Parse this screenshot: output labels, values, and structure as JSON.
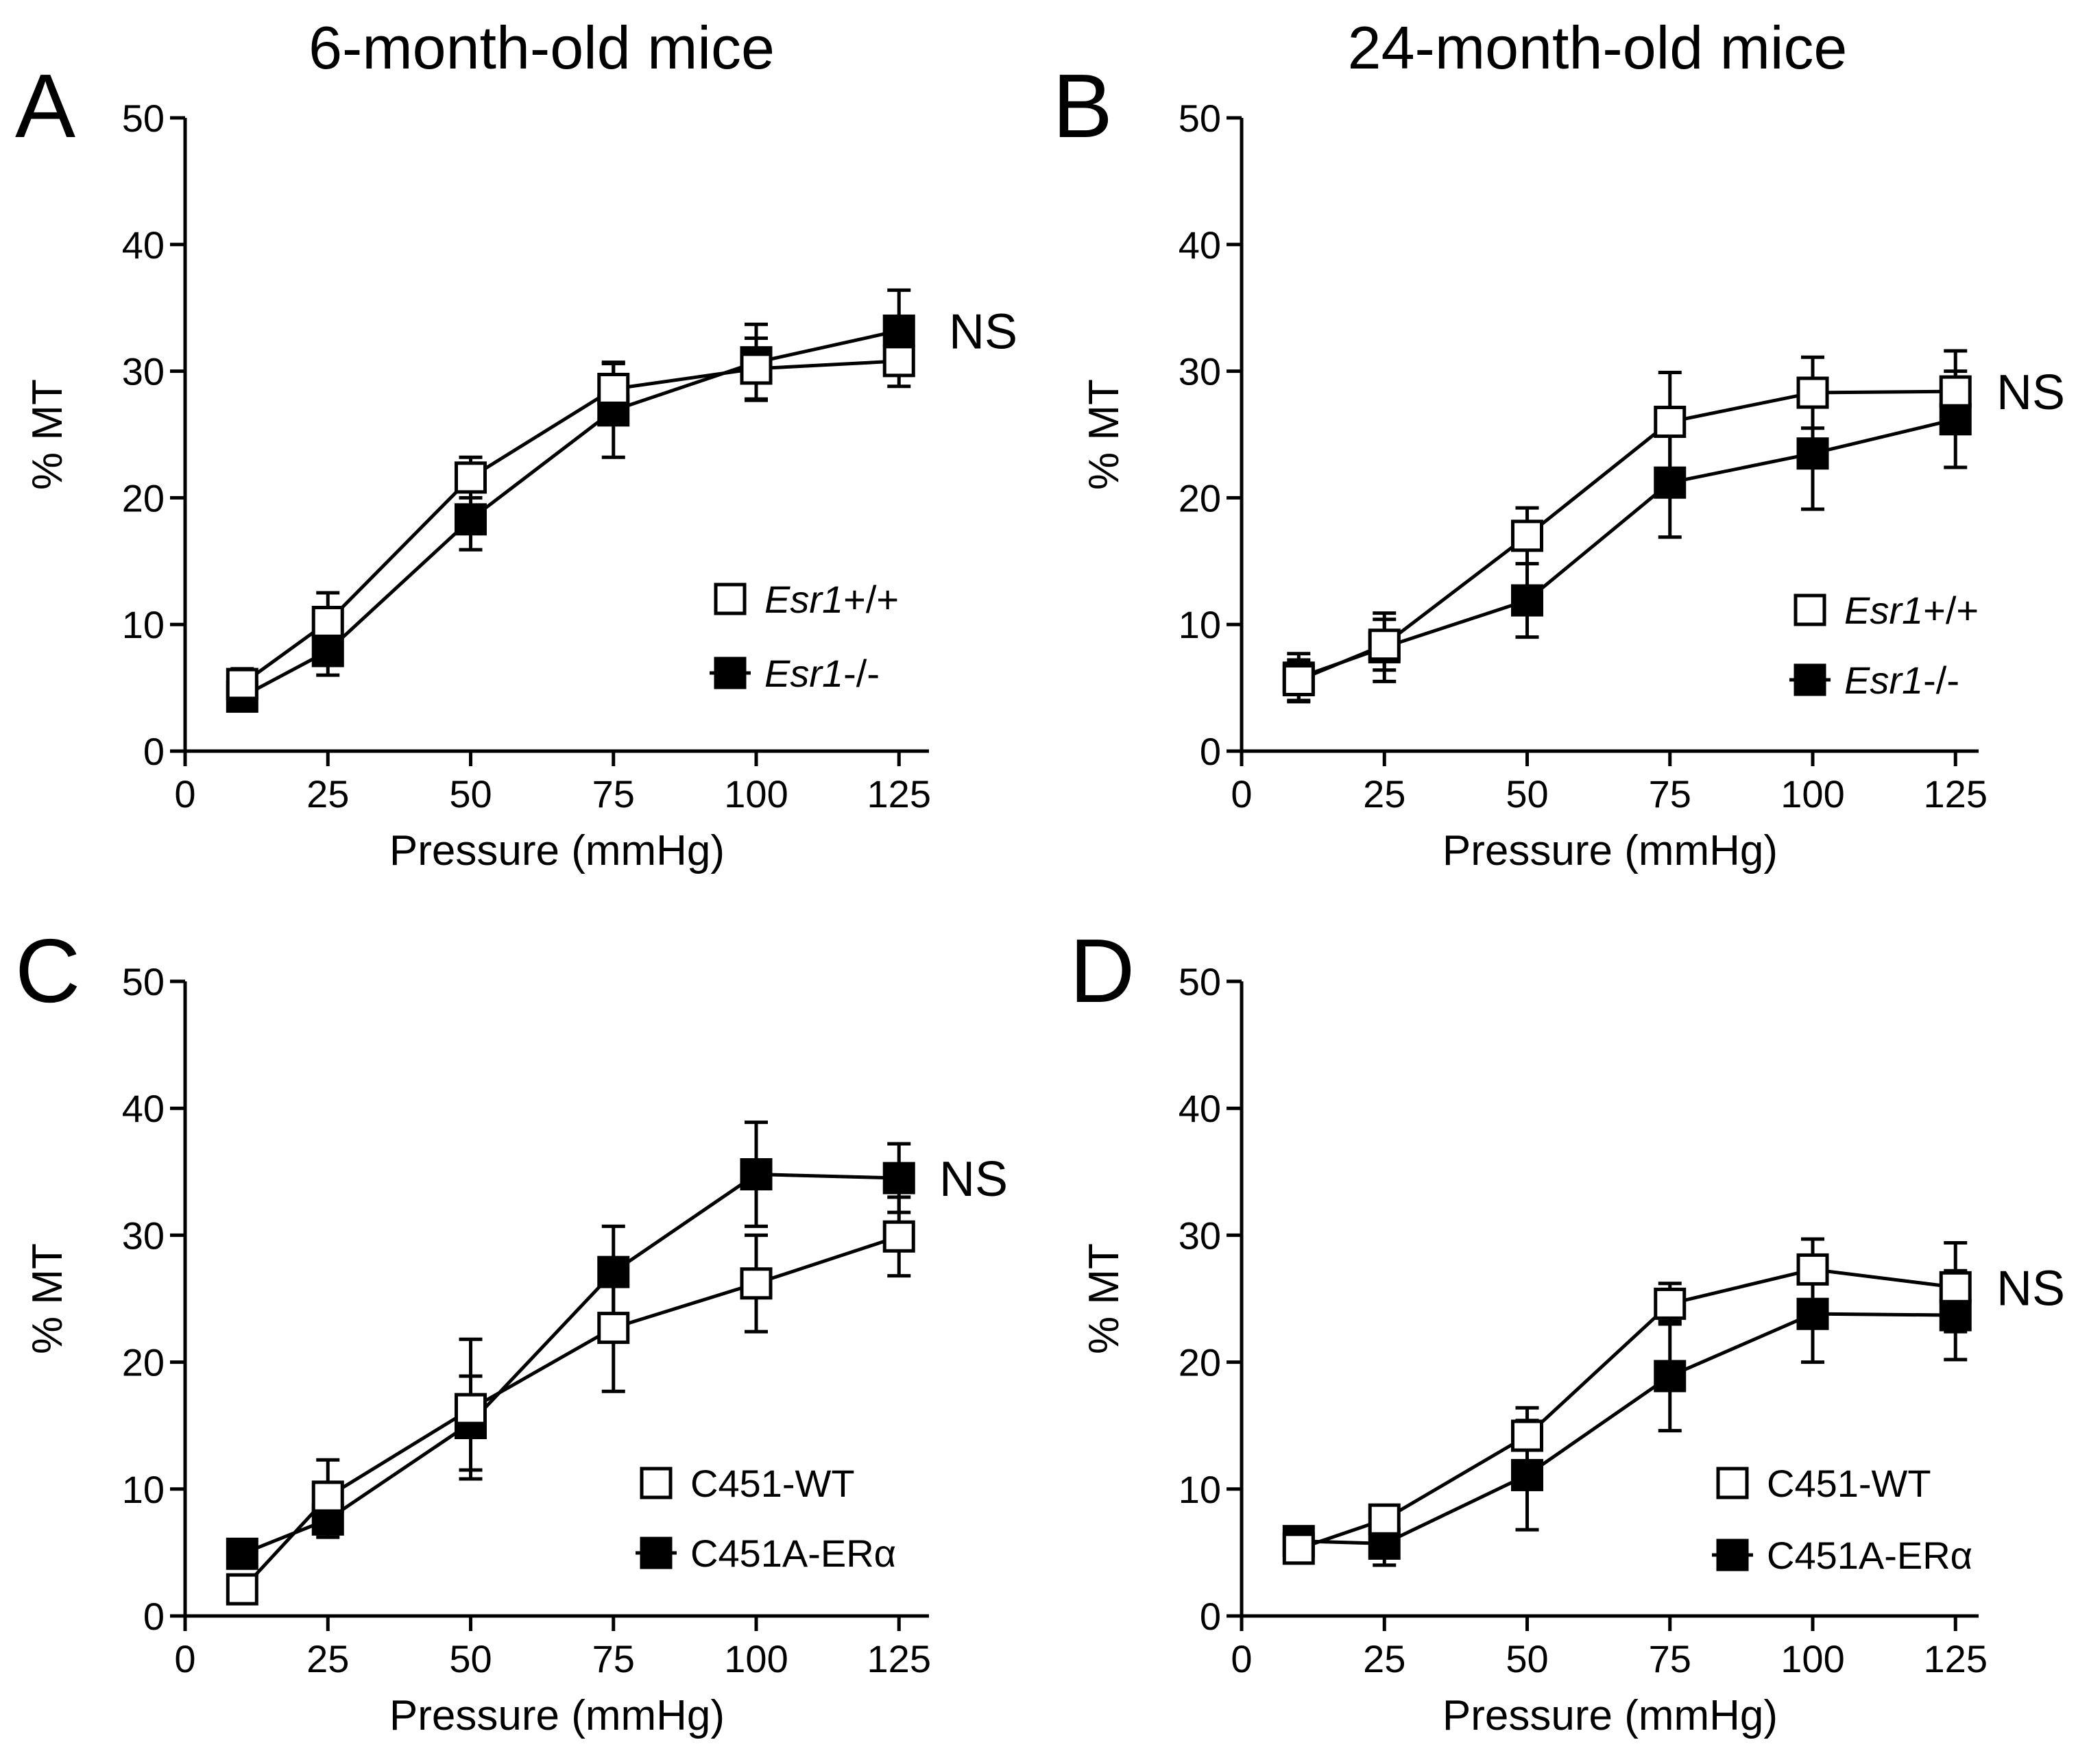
{
  "column_titles": [
    "6-month-old mice",
    "24-month-old mice"
  ],
  "chart_data": [
    {
      "panel": "A",
      "type": "line",
      "xlabel": "Pressure (mmHg)",
      "ylabel": "% MT",
      "xlim": [
        0,
        130
      ],
      "ylim": [
        0,
        50
      ],
      "xticks": [
        0,
        25,
        50,
        75,
        100,
        125
      ],
      "yticks": [
        0,
        10,
        20,
        30,
        40,
        50
      ],
      "x": [
        10,
        25,
        50,
        75,
        100,
        125
      ],
      "annotation": "NS",
      "legend_position": "bottom-right",
      "series": [
        {
          "name_italic": "Esr1",
          "name_suffix": "+/+",
          "marker": "open-square",
          "values": [
            5.3,
            10.2,
            21.6,
            28.6,
            30.2,
            30.8
          ],
          "errors": [
            1.2,
            2.3,
            1.6,
            2.1,
            2.4,
            2.0
          ]
        },
        {
          "name_italic": "Esr1",
          "name_suffix": "-/-",
          "marker": "filled-square",
          "values": [
            4.3,
            7.9,
            18.3,
            26.9,
            30.7,
            33.2
          ],
          "errors": [
            0.9,
            1.9,
            2.4,
            3.7,
            3.0,
            3.2
          ]
        }
      ]
    },
    {
      "panel": "B",
      "type": "line",
      "xlabel": "Pressure (mmHg)",
      "ylabel": "% MT",
      "xlim": [
        0,
        130
      ],
      "ylim": [
        0,
        50
      ],
      "xticks": [
        0,
        25,
        50,
        75,
        100,
        125
      ],
      "yticks": [
        0,
        10,
        20,
        30,
        40,
        50
      ],
      "x": [
        10,
        25,
        50,
        75,
        100,
        125
      ],
      "annotation": "NS",
      "legend_position": "bottom-right",
      "series": [
        {
          "name_italic": "Esr1",
          "name_suffix": "+/+",
          "marker": "open-square",
          "values": [
            5.6,
            8.4,
            17.0,
            26.0,
            28.3,
            28.4
          ],
          "errors": [
            1.6,
            2.0,
            2.2,
            3.9,
            2.8,
            3.2
          ]
        },
        {
          "name_italic": "Esr1",
          "name_suffix": "-/-",
          "marker": "filled-square",
          "values": [
            5.8,
            8.2,
            11.9,
            21.2,
            23.5,
            26.2
          ],
          "errors": [
            1.9,
            2.7,
            2.9,
            4.3,
            4.4,
            3.8
          ]
        }
      ]
    },
    {
      "panel": "C",
      "type": "line",
      "xlabel": "Pressure (mmHg)",
      "ylabel": "% MT",
      "xlim": [
        0,
        130
      ],
      "ylim": [
        0,
        50
      ],
      "xticks": [
        0,
        25,
        50,
        75,
        100,
        125
      ],
      "yticks": [
        0,
        10,
        20,
        30,
        40,
        50
      ],
      "x": [
        10,
        25,
        50,
        75,
        100,
        125
      ],
      "annotation": "NS",
      "legend_position": "bottom-right",
      "series": [
        {
          "name_italic": "",
          "name_suffix": "C451-WT",
          "marker": "open-square",
          "values": [
            2.1,
            9.4,
            16.3,
            22.7,
            26.2,
            29.9
          ],
          "errors": [
            0.7,
            2.9,
            5.5,
            5.0,
            3.8,
            3.1
          ]
        },
        {
          "name_italic": "",
          "name_suffix": "C451A-ERα",
          "marker": "filled-square",
          "values": [
            4.9,
            7.6,
            15.2,
            27.1,
            34.8,
            34.5
          ],
          "errors": [
            0.6,
            1.4,
            3.7,
            3.6,
            4.1,
            2.7
          ]
        }
      ]
    },
    {
      "panel": "D",
      "type": "line",
      "xlabel": "Pressure (mmHg)",
      "ylabel": "% MT",
      "xlim": [
        0,
        130
      ],
      "ylim": [
        0,
        50
      ],
      "xticks": [
        0,
        25,
        50,
        75,
        100,
        125
      ],
      "yticks": [
        0,
        10,
        20,
        30,
        40,
        50
      ],
      "x": [
        10,
        25,
        50,
        75,
        100,
        125
      ],
      "annotation": "NS",
      "legend_position": "bottom-right",
      "series": [
        {
          "name_italic": "",
          "name_suffix": "C451-WT",
          "marker": "open-square",
          "values": [
            5.3,
            7.6,
            14.2,
            24.6,
            27.3,
            25.9
          ],
          "errors": [
            0.8,
            1.1,
            2.2,
            1.6,
            2.4,
            3.5
          ]
        },
        {
          "name_italic": "",
          "name_suffix": "C451A-ERα",
          "marker": "filled-square",
          "values": [
            5.9,
            5.7,
            11.1,
            18.9,
            23.8,
            23.7
          ],
          "errors": [
            0.7,
            1.7,
            4.3,
            4.3,
            3.8,
            3.5
          ]
        }
      ]
    }
  ]
}
